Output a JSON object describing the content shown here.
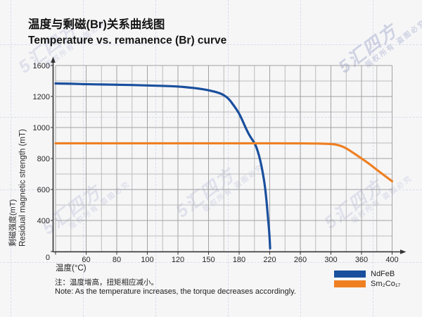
{
  "title": {
    "zh": "温度与剩磁(Br)关系曲线图",
    "en": "Temperature vs. remanence (Br) curve"
  },
  "axes": {
    "x_title": "温度(°C)",
    "y_title_zh": "剩磁强度(mT)",
    "y_title_en": "Residual magnetic strength (mT)"
  },
  "chart_data": {
    "type": "line",
    "title": "温度与剩磁(Br)关系曲线图 / Temperature vs. remanence (Br) curve",
    "xlabel": "温度(°C)",
    "ylabel": "剩磁强度(mT) / Residual magnetic strength (mT)",
    "x_ticks": [
      0,
      60,
      80,
      100,
      120,
      150,
      180,
      220,
      260,
      300,
      360,
      400
    ],
    "y_ticks": [
      0,
      400,
      600,
      800,
      1000,
      1200,
      1600
    ],
    "axis_scale_hint": "ticks are evenly spaced on screen although values are non-linear; grid on, one minor gridline between each pair of major ticks",
    "legend_position": "bottom-right",
    "series": [
      {
        "name": "NdFeB",
        "color": "#1a4f9d",
        "points": [
          [
            0,
            1368
          ],
          [
            20,
            1366
          ],
          [
            40,
            1363
          ],
          [
            60,
            1359
          ],
          [
            80,
            1353
          ],
          [
            100,
            1344
          ],
          [
            120,
            1330
          ],
          [
            130,
            1318
          ],
          [
            140,
            1303
          ],
          [
            150,
            1282
          ],
          [
            160,
            1248
          ],
          [
            165,
            1220
          ],
          [
            170,
            1184
          ],
          [
            175,
            1140
          ],
          [
            180,
            1092
          ],
          [
            185,
            1038
          ],
          [
            190,
            982
          ],
          [
            195,
            936
          ],
          [
            200,
            902
          ],
          [
            203,
            868
          ],
          [
            206,
            820
          ],
          [
            209,
            758
          ],
          [
            212,
            678
          ],
          [
            214,
            610
          ],
          [
            216,
            518
          ],
          [
            218,
            400
          ],
          [
            219,
            298
          ],
          [
            220,
            150
          ],
          [
            220.5,
            40
          ]
        ]
      },
      {
        "name": "Sm₂Co₁₇",
        "color": "#ee8022",
        "points": [
          [
            0,
            898
          ],
          [
            50,
            898
          ],
          [
            100,
            898
          ],
          [
            150,
            898
          ],
          [
            200,
            898
          ],
          [
            250,
            898
          ],
          [
            280,
            897
          ],
          [
            300,
            894
          ],
          [
            310,
            890
          ],
          [
            320,
            881
          ],
          [
            330,
            866
          ],
          [
            340,
            845
          ],
          [
            350,
            823
          ],
          [
            360,
            800
          ],
          [
            370,
            766
          ],
          [
            380,
            727
          ],
          [
            390,
            690
          ],
          [
            400,
            653
          ]
        ]
      }
    ]
  },
  "legend": {
    "items": [
      {
        "label": "NdFeB",
        "color": "#1a4f9d"
      },
      {
        "label": "Sm₂Co₁₇",
        "color": "#ee8022"
      }
    ]
  },
  "note": {
    "zh": "注：温度增高，扭矩相应减小。",
    "en": "Note: As the temperature increases, the torque decreases accordingly."
  },
  "watermark": {
    "line1": "5汇四方",
    "line2": "版权所有 盗图必究"
  }
}
